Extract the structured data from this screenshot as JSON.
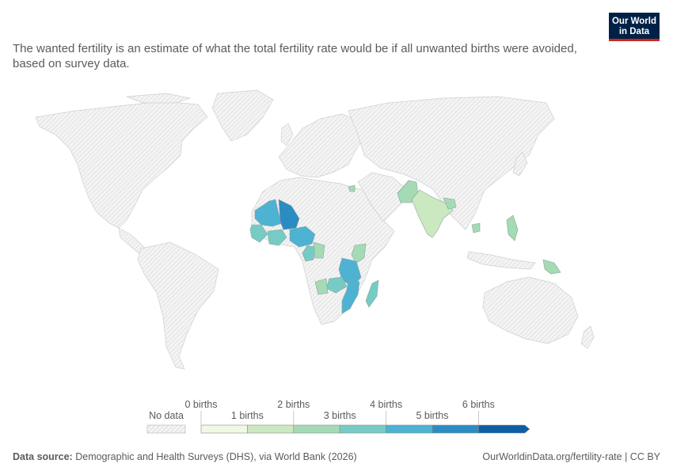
{
  "subtitle": "The wanted fertility is an estimate of what the total fertility rate would be if all unwanted births were avoided, based on survey data.",
  "logo": {
    "line1": "Our World",
    "line2": "in Data",
    "bg_color": "#002147",
    "accent_color": "#ce261e"
  },
  "legend": {
    "no_data_label": "No data",
    "top_labels": [
      "0 births",
      "2 births",
      "4 births",
      "6 births"
    ],
    "bottom_labels": [
      "1 births",
      "3 births",
      "5 births"
    ],
    "bins": [
      {
        "color": "#f1f8e6"
      },
      {
        "color": "#cbe9c0"
      },
      {
        "color": "#a4dab4"
      },
      {
        "color": "#76cbc5"
      },
      {
        "color": "#4eb2d3"
      },
      {
        "color": "#2b8cc4"
      },
      {
        "color": "#0e5da5"
      }
    ]
  },
  "map_data": {
    "scale_units": "births per woman",
    "countries": [
      {
        "name": "Mali",
        "bin": 5
      },
      {
        "name": "Niger",
        "bin": 6
      },
      {
        "name": "Senegal",
        "bin": 4
      },
      {
        "name": "Nigeria",
        "bin": 4
      },
      {
        "name": "Cameroon",
        "bin": 4
      },
      {
        "name": "Ghana",
        "bin": 3
      },
      {
        "name": "Guinea",
        "bin": 5
      },
      {
        "name": "Burkina Faso",
        "bin": 5
      },
      {
        "name": "Angola",
        "bin": 3
      },
      {
        "name": "Kenya",
        "bin": 2
      },
      {
        "name": "Tanzania",
        "bin": 4
      },
      {
        "name": "Malawi",
        "bin": 4
      },
      {
        "name": "Mozambique",
        "bin": 5
      },
      {
        "name": "Zambia",
        "bin": 3
      },
      {
        "name": "Madagascar",
        "bin": 3
      },
      {
        "name": "Egypt",
        "bin": 2
      },
      {
        "name": "Pakistan",
        "bin": 2
      },
      {
        "name": "India",
        "bin": 1
      },
      {
        "name": "Bangladesh",
        "bin": 1
      },
      {
        "name": "Cambodia",
        "bin": 2
      },
      {
        "name": "Philippines",
        "bin": 2
      },
      {
        "name": "Papua New Guinea",
        "bin": 2
      }
    ]
  },
  "footer": {
    "source_label": "Data source:",
    "source_text": "Demographic and Health Surveys (DHS), via World Bank (2026)",
    "url_text": "OurWorldinData.org/fertility-rate | CC BY"
  }
}
